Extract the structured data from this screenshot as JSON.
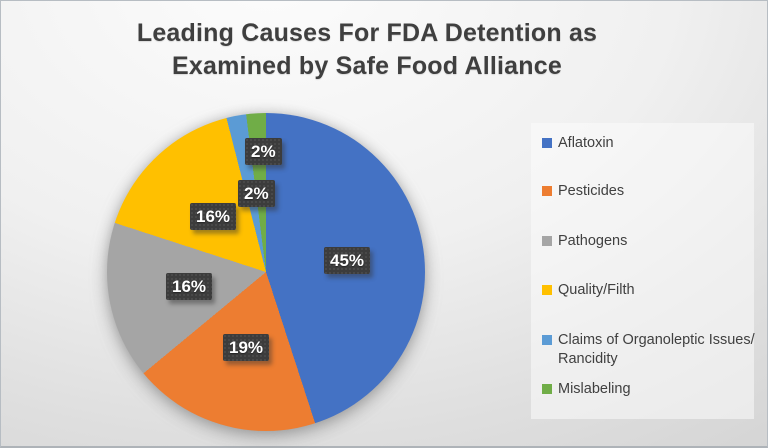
{
  "header": {
    "title_line1": "Leading Causes For FDA Detention as",
    "title_line2": "Examined by Safe Food Alliance"
  },
  "chart_data": {
    "type": "pie",
    "title": "Leading Causes For FDA Detention as Examined by Safe Food Alliance",
    "categories": [
      "Aflatoxin",
      "Pesticides",
      "Pathogens",
      "Quality/Filth",
      "Claims of Organoleptic Issues/ Rancidity",
      "Mislabeling"
    ],
    "values": [
      45,
      19,
      16,
      16,
      2,
      2
    ],
    "unit": "%",
    "slice_labels": [
      "45%",
      "19%",
      "16%",
      "16%",
      "2%",
      "2%"
    ],
    "colors": [
      "#4472C4",
      "#ED7D31",
      "#A5A5A5",
      "#FFC000",
      "#5B9BD5",
      "#70AD47"
    ],
    "legend": [
      "Aflatoxin",
      "Pesticides",
      "Pathogens",
      "Quality/Filth",
      "Claims of Organoleptic Issues/ Rancidity",
      "Mislabeling"
    ],
    "legend_position": "right",
    "start_angle_deg": 0,
    "direction": "clockwise",
    "label_style": {
      "box_color": "#3C3C3C",
      "text_color": "#FFFFFF"
    },
    "title_color": "#3F3F3F"
  }
}
